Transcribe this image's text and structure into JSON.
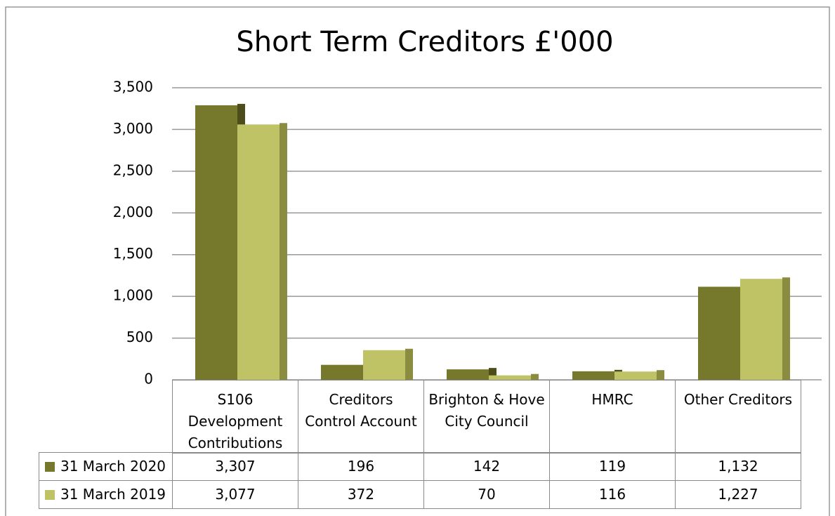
{
  "chart_data": {
    "type": "bar",
    "title": "Short Term Creditors £'000",
    "categories": [
      "S106 Development Contributions",
      "Creditors Control Account",
      "Brighton & Hove City Council",
      "HMRC",
      "Other Creditors"
    ],
    "series": [
      {
        "name": "31 March 2020",
        "color": "#76782b",
        "side_color": "#4c4d1a",
        "values": [
          3307,
          196,
          142,
          119,
          1132
        ],
        "value_labels": [
          "3,307",
          "196",
          "142",
          "119",
          "1,132"
        ]
      },
      {
        "name": "31 March 2019",
        "color": "#bfc365",
        "side_color": "#8a8c3f",
        "values": [
          3077,
          372,
          70,
          116,
          1227
        ],
        "value_labels": [
          "3,077",
          "372",
          "70",
          "116",
          "1,227"
        ]
      }
    ],
    "ylim": [
      0,
      3500
    ],
    "yticks": [
      0,
      500,
      {
        "value": 1000,
        "label": "1,000"
      },
      {
        "value": 1500,
        "label": "1,500"
      },
      {
        "value": 2000,
        "label": "2,000"
      },
      {
        "value": 2500,
        "label": "2,500"
      },
      {
        "value": 3000,
        "label": "3,000"
      },
      {
        "value": 3500,
        "label": "3,500"
      }
    ],
    "grid": true
  }
}
